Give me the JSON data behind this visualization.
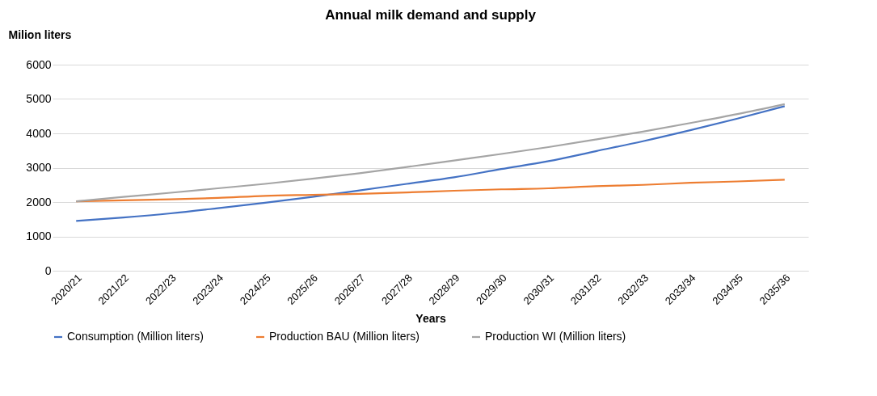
{
  "chart_data": {
    "type": "line",
    "title": "Annual milk demand and supply",
    "xlabel": "Years",
    "ylabel": "Milion  liters",
    "categories": [
      "2020/21",
      "2021/22",
      "2022/23",
      "2023/24",
      "2024/25",
      "2025/26",
      "2026/27",
      "2027/28",
      "2028/29",
      "2029/30",
      "2030/31",
      "2031/32",
      "2032/33",
      "2033/34",
      "2034/35",
      "2035/36"
    ],
    "series": [
      {
        "name": "Consumption (Million liters)",
        "color": "#4472c4",
        "values": [
          1450,
          1550,
          1670,
          1820,
          1980,
          2150,
          2340,
          2530,
          2720,
          2960,
          3190,
          3480,
          3770,
          4090,
          4430,
          4790
        ]
      },
      {
        "name": "Production BAU (Million liters)",
        "color": "#ed7d31",
        "values": [
          2020,
          2050,
          2080,
          2120,
          2180,
          2210,
          2240,
          2280,
          2330,
          2370,
          2400,
          2460,
          2500,
          2560,
          2600,
          2650
        ]
      },
      {
        "name": "Production WI  (Million liters)",
        "color": "#a5a5a5",
        "values": [
          2020,
          2150,
          2270,
          2400,
          2530,
          2680,
          2840,
          3020,
          3210,
          3400,
          3600,
          3820,
          4050,
          4300,
          4560,
          4850
        ]
      }
    ],
    "ylim": [
      0,
      6000
    ],
    "yticks": [
      0,
      1000,
      2000,
      3000,
      4000,
      5000,
      6000
    ],
    "grid": "y",
    "legend": "bottom",
    "marker": "none",
    "line_style": "solid"
  }
}
